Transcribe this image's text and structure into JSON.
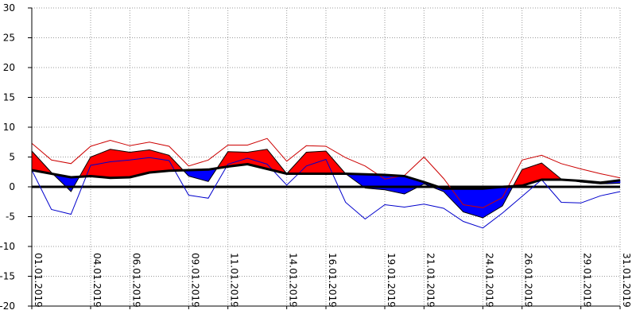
{
  "chart_data": {
    "type": "area",
    "title": "",
    "xlabel": "",
    "ylabel": "",
    "ylim": [
      -20,
      30
    ],
    "y_ticks": [
      30,
      25,
      20,
      15,
      10,
      5,
      0,
      -5,
      -10,
      -15,
      -20
    ],
    "grid": true,
    "x_tick_labels": [
      "01.01.2019",
      "04.01.2019",
      "06.01.2019",
      "09.01.2019",
      "11.01.2019",
      "14.01.2019",
      "16.01.2019",
      "19.01.2019",
      "21.01.2019",
      "24.01.2019",
      "26.01.2019",
      "29.01.2019",
      "31.01.2019"
    ],
    "x_tick_days": [
      1,
      4,
      6,
      9,
      11,
      14,
      16,
      19,
      21,
      24,
      26,
      29,
      31
    ],
    "days": [
      1,
      2,
      3,
      4,
      5,
      6,
      7,
      8,
      9,
      10,
      11,
      12,
      13,
      14,
      15,
      16,
      17,
      18,
      19,
      20,
      21,
      22,
      23,
      24,
      25,
      26,
      27,
      28,
      29,
      30,
      31
    ],
    "series": [
      {
        "role": "observed",
        "values": [
          6.0,
          2.4,
          -0.8,
          5.0,
          6.3,
          5.8,
          6.2,
          5.3,
          1.8,
          0.9,
          5.9,
          5.8,
          6.3,
          2.2,
          5.8,
          6.0,
          2.2,
          -0.2,
          -0.5,
          -1.2,
          0.5,
          -0.8,
          -4.2,
          -5.2,
          -3.2,
          2.9,
          4.0,
          1.3,
          0.8,
          0.5,
          0.6
        ]
      },
      {
        "role": "norm",
        "values": [
          2.8,
          2.2,
          1.6,
          1.8,
          1.5,
          1.6,
          2.4,
          2.7,
          2.8,
          2.9,
          3.4,
          3.8,
          3.0,
          2.2,
          2.2,
          2.2,
          2.2,
          2.1,
          2.0,
          1.8,
          0.8,
          -0.3,
          -0.3,
          -0.3,
          0.0,
          0.2,
          1.2,
          1.2,
          1.0,
          0.7,
          1.1
        ]
      },
      {
        "role": "max",
        "color": "#cc0000",
        "values": [
          7.3,
          4.5,
          3.9,
          6.8,
          7.8,
          6.9,
          7.5,
          6.8,
          3.5,
          4.5,
          7.0,
          7.0,
          8.1,
          4.3,
          6.9,
          6.8,
          4.9,
          3.5,
          1.3,
          1.9,
          5.0,
          1.4,
          -3.0,
          -3.5,
          -1.8,
          4.5,
          5.3,
          3.9,
          3.0,
          2.2,
          1.5
        ]
      },
      {
        "role": "min",
        "color": "#0000cc",
        "values": [
          2.8,
          -3.8,
          -4.6,
          3.6,
          4.2,
          4.5,
          4.9,
          4.4,
          -1.4,
          -1.9,
          3.8,
          4.8,
          3.8,
          0.3,
          3.5,
          4.6,
          -2.6,
          -5.4,
          -3.0,
          -3.4,
          -2.9,
          -3.6,
          -5.8,
          -6.9,
          -4.4,
          -1.6,
          1.2,
          -2.6,
          -2.7,
          -1.5,
          -0.8
        ]
      }
    ],
    "colors": {
      "above_norm": "#ff0000",
      "below_norm": "#0000ff",
      "outline": "#000000",
      "grid": "#999999"
    }
  }
}
